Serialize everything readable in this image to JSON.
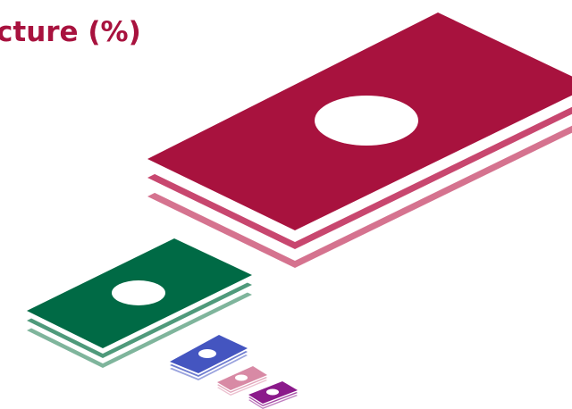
{
  "header": {
    "title": "cture (%)"
  }
}
